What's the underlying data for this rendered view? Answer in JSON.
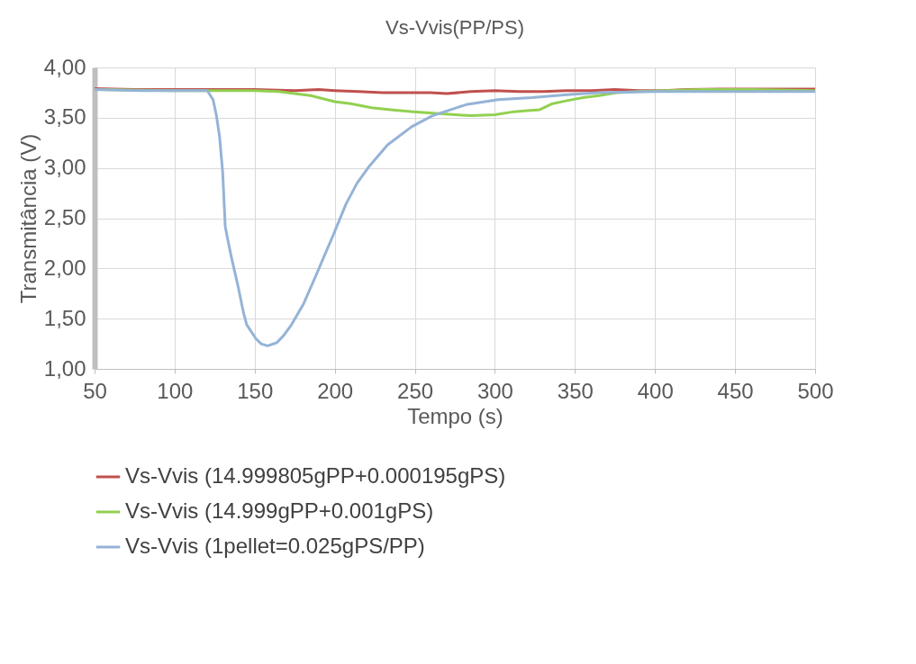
{
  "chart_data": {
    "type": "line",
    "title": "Vs-Vvis(PP/PS)",
    "xlabel": "Tempo (s)",
    "ylabel": "Transmitância (V)",
    "xlim": [
      50,
      500
    ],
    "xticks": [
      50,
      100,
      150,
      200,
      250,
      300,
      350,
      400,
      450,
      500
    ],
    "ylim": [
      1,
      4
    ],
    "yticks": [
      {
        "value": 1,
        "label": "1,00"
      },
      {
        "value": 1.5,
        "label": "1,50"
      },
      {
        "value": 2,
        "label": "2,00"
      },
      {
        "value": 2.5,
        "label": "2,50"
      },
      {
        "value": 3,
        "label": "3,00"
      },
      {
        "value": 3.5,
        "label": "3,50"
      },
      {
        "value": 4,
        "label": "4,00"
      }
    ],
    "grid": true,
    "legend": "bottom",
    "marker": "none",
    "line_style": "solid",
    "series": [
      {
        "name": "Vs-Vvis (14.999805gPP+0.000195gPS)",
        "color": "#c0504d",
        "x": [
          50,
          75,
          100,
          125,
          150,
          175,
          190,
          200,
          215,
          230,
          245,
          260,
          270,
          285,
          300,
          315,
          330,
          345,
          360,
          375,
          390,
          405,
          420,
          440,
          460,
          480,
          500
        ],
        "values": [
          3.79,
          3.78,
          3.78,
          3.78,
          3.78,
          3.77,
          3.78,
          3.77,
          3.76,
          3.75,
          3.75,
          3.75,
          3.74,
          3.76,
          3.77,
          3.76,
          3.76,
          3.77,
          3.77,
          3.78,
          3.77,
          3.77,
          3.78,
          3.785,
          3.785,
          3.785,
          3.785
        ]
      },
      {
        "name": "Vs-Vvis (14.999gPP+0.001gPS)",
        "color": "#92d050",
        "x": [
          50,
          100,
          130,
          150,
          165,
          175,
          185,
          200,
          210,
          223,
          235,
          249,
          265,
          285,
          300,
          312,
          320,
          328,
          336,
          345,
          355,
          365,
          376,
          390,
          407,
          430,
          460,
          500
        ],
        "values": [
          3.78,
          3.77,
          3.77,
          3.77,
          3.76,
          3.74,
          3.72,
          3.66,
          3.64,
          3.6,
          3.58,
          3.56,
          3.54,
          3.52,
          3.53,
          3.56,
          3.57,
          3.58,
          3.64,
          3.67,
          3.7,
          3.72,
          3.75,
          3.76,
          3.77,
          3.78,
          3.78,
          3.77
        ]
      },
      {
        "name": "Vs-Vvis (1pellet=0.025gPS/PP)",
        "color": "#95b3d7",
        "x": [
          50,
          80,
          110,
          120.4,
          124,
          126,
          128,
          130,
          131.6,
          133,
          135.6,
          139.5,
          143,
          145,
          150.8,
          154,
          158,
          163.7,
          168,
          173,
          180.6,
          188,
          193.6,
          199,
          207,
          214,
          221.7,
          233,
          248,
          261,
          282,
          302,
          323,
          345,
          365,
          400,
          450,
          500
        ],
        "values": [
          3.78,
          3.77,
          3.77,
          3.77,
          3.68,
          3.53,
          3.32,
          2.96,
          2.42,
          2.3,
          2.1,
          1.83,
          1.56,
          1.44,
          1.3,
          1.25,
          1.23,
          1.26,
          1.33,
          1.44,
          1.65,
          1.92,
          2.13,
          2.33,
          2.64,
          2.85,
          3.02,
          3.23,
          3.41,
          3.52,
          3.63,
          3.68,
          3.7,
          3.73,
          3.75,
          3.76,
          3.76,
          3.76
        ]
      }
    ]
  }
}
